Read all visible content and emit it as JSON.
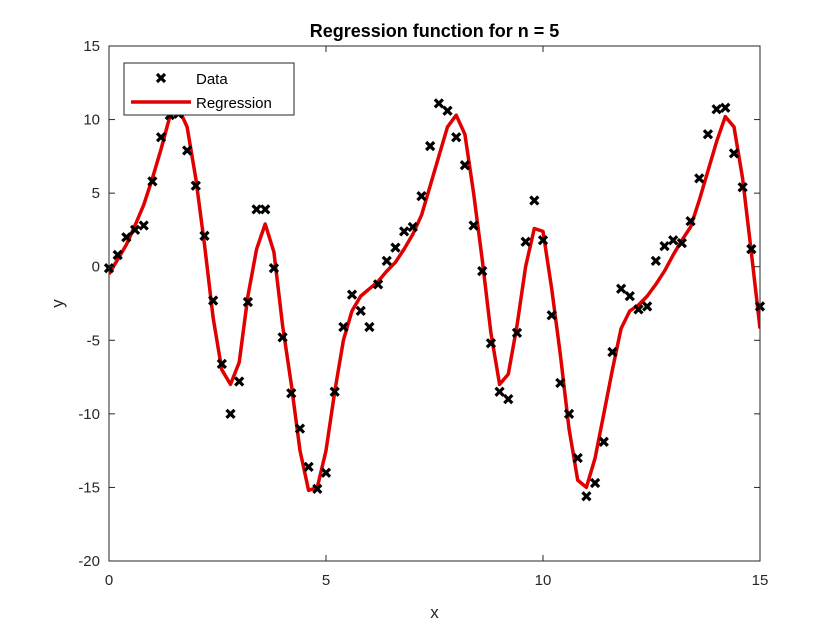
{
  "chart_data": {
    "type": "line",
    "title": "Regression function for n = 5",
    "xlabel": "x",
    "ylabel": "y",
    "xlim": [
      0,
      15
    ],
    "ylim": [
      -20,
      15
    ],
    "xticks": [
      0,
      5,
      10,
      15
    ],
    "yticks": [
      -20,
      -15,
      -10,
      -5,
      0,
      5,
      10,
      15
    ],
    "grid": false,
    "legend_placement": "top-left",
    "series": [
      {
        "name": "Data",
        "style": "markers",
        "marker": "x",
        "color": "#000000",
        "x": [
          0,
          0.2,
          0.4,
          0.6,
          0.8,
          1.0,
          1.2,
          1.4,
          1.6,
          1.8,
          2.0,
          2.2,
          2.4,
          2.6,
          2.8,
          3.0,
          3.2,
          3.4,
          3.6,
          3.8,
          4.0,
          4.2,
          4.4,
          4.6,
          4.8,
          5.0,
          5.2,
          5.4,
          5.6,
          5.8,
          6.0,
          6.2,
          6.4,
          6.6,
          6.8,
          7.0,
          7.2,
          7.4,
          7.6,
          7.8,
          8.0,
          8.2,
          8.4,
          8.6,
          8.8,
          9.0,
          9.2,
          9.4,
          9.6,
          9.8,
          10.0,
          10.2,
          10.4,
          10.6,
          10.8,
          11.0,
          11.2,
          11.4,
          11.6,
          11.8,
          12.0,
          12.2,
          12.4,
          12.6,
          12.8,
          13.0,
          13.2,
          13.4,
          13.6,
          13.8,
          14.0,
          14.2,
          14.4,
          14.6,
          14.8,
          15.0
        ],
        "y": [
          -0.1,
          0.8,
          2.0,
          2.5,
          2.8,
          5.8,
          8.8,
          10.3,
          10.4,
          7.9,
          5.5,
          2.1,
          -2.3,
          -6.6,
          -10.0,
          -7.8,
          -2.4,
          3.9,
          3.9,
          -0.1,
          -4.8,
          -8.6,
          -11.0,
          -13.6,
          -15.1,
          -14.0,
          -8.5,
          -4.1,
          -1.9,
          -3.0,
          -4.1,
          -1.2,
          0.4,
          1.3,
          2.4,
          2.7,
          4.8,
          8.2,
          11.1,
          10.6,
          8.8,
          6.9,
          2.8,
          -0.3,
          -5.2,
          -8.5,
          -9.0,
          -4.5,
          1.7,
          4.5,
          1.8,
          -3.3,
          -7.9,
          -10.0,
          -13.0,
          -15.6,
          -14.7,
          -11.9,
          -5.8,
          -1.5,
          -2.0,
          -2.9,
          -2.7,
          0.4,
          1.4,
          1.8,
          1.6,
          3.1,
          6.0,
          9.0,
          10.7,
          10.8,
          7.7,
          5.4,
          1.2,
          -2.7
        ]
      },
      {
        "name": "Regression",
        "style": "line",
        "color": "#e00000",
        "x": [
          0,
          0.2,
          0.4,
          0.6,
          0.8,
          1.0,
          1.2,
          1.4,
          1.6,
          1.8,
          2.0,
          2.2,
          2.4,
          2.6,
          2.8,
          3.0,
          3.2,
          3.4,
          3.6,
          3.8,
          4.0,
          4.2,
          4.4,
          4.6,
          4.8,
          5.0,
          5.2,
          5.4,
          5.6,
          5.8,
          6.0,
          6.2,
          6.4,
          6.6,
          6.8,
          7.0,
          7.2,
          7.4,
          7.6,
          7.8,
          8.0,
          8.2,
          8.4,
          8.6,
          8.8,
          9.0,
          9.2,
          9.4,
          9.6,
          9.8,
          10.0,
          10.2,
          10.4,
          10.6,
          10.8,
          11.0,
          11.2,
          11.4,
          11.6,
          11.8,
          12.0,
          12.2,
          12.4,
          12.6,
          12.8,
          13.0,
          13.2,
          13.4,
          13.6,
          13.8,
          14.0,
          14.2,
          14.4,
          14.6,
          14.8,
          15.0
        ],
        "y": [
          -0.5,
          0.5,
          1.5,
          2.8,
          4.2,
          6.0,
          8.0,
          10.2,
          10.8,
          9.5,
          6.0,
          1.5,
          -3.5,
          -7.0,
          -8.0,
          -6.5,
          -2.0,
          1.2,
          2.9,
          1.0,
          -4.0,
          -8.0,
          -12.5,
          -15.2,
          -15.0,
          -12.5,
          -8.5,
          -5.0,
          -3.0,
          -2.0,
          -1.5,
          -1.0,
          -0.3,
          0.3,
          1.2,
          2.2,
          3.5,
          5.5,
          7.5,
          9.5,
          10.3,
          9.0,
          5.0,
          0.5,
          -4.5,
          -8.0,
          -7.3,
          -4.0,
          0.0,
          2.6,
          2.4,
          -1.5,
          -6.0,
          -11.0,
          -14.5,
          -15.0,
          -13.0,
          -10.0,
          -7.0,
          -4.2,
          -3.0,
          -2.6,
          -2.0,
          -1.2,
          -0.3,
          0.8,
          1.8,
          2.7,
          4.5,
          6.5,
          8.5,
          10.2,
          9.5,
          6.0,
          1.0,
          -4.2
        ]
      }
    ]
  }
}
